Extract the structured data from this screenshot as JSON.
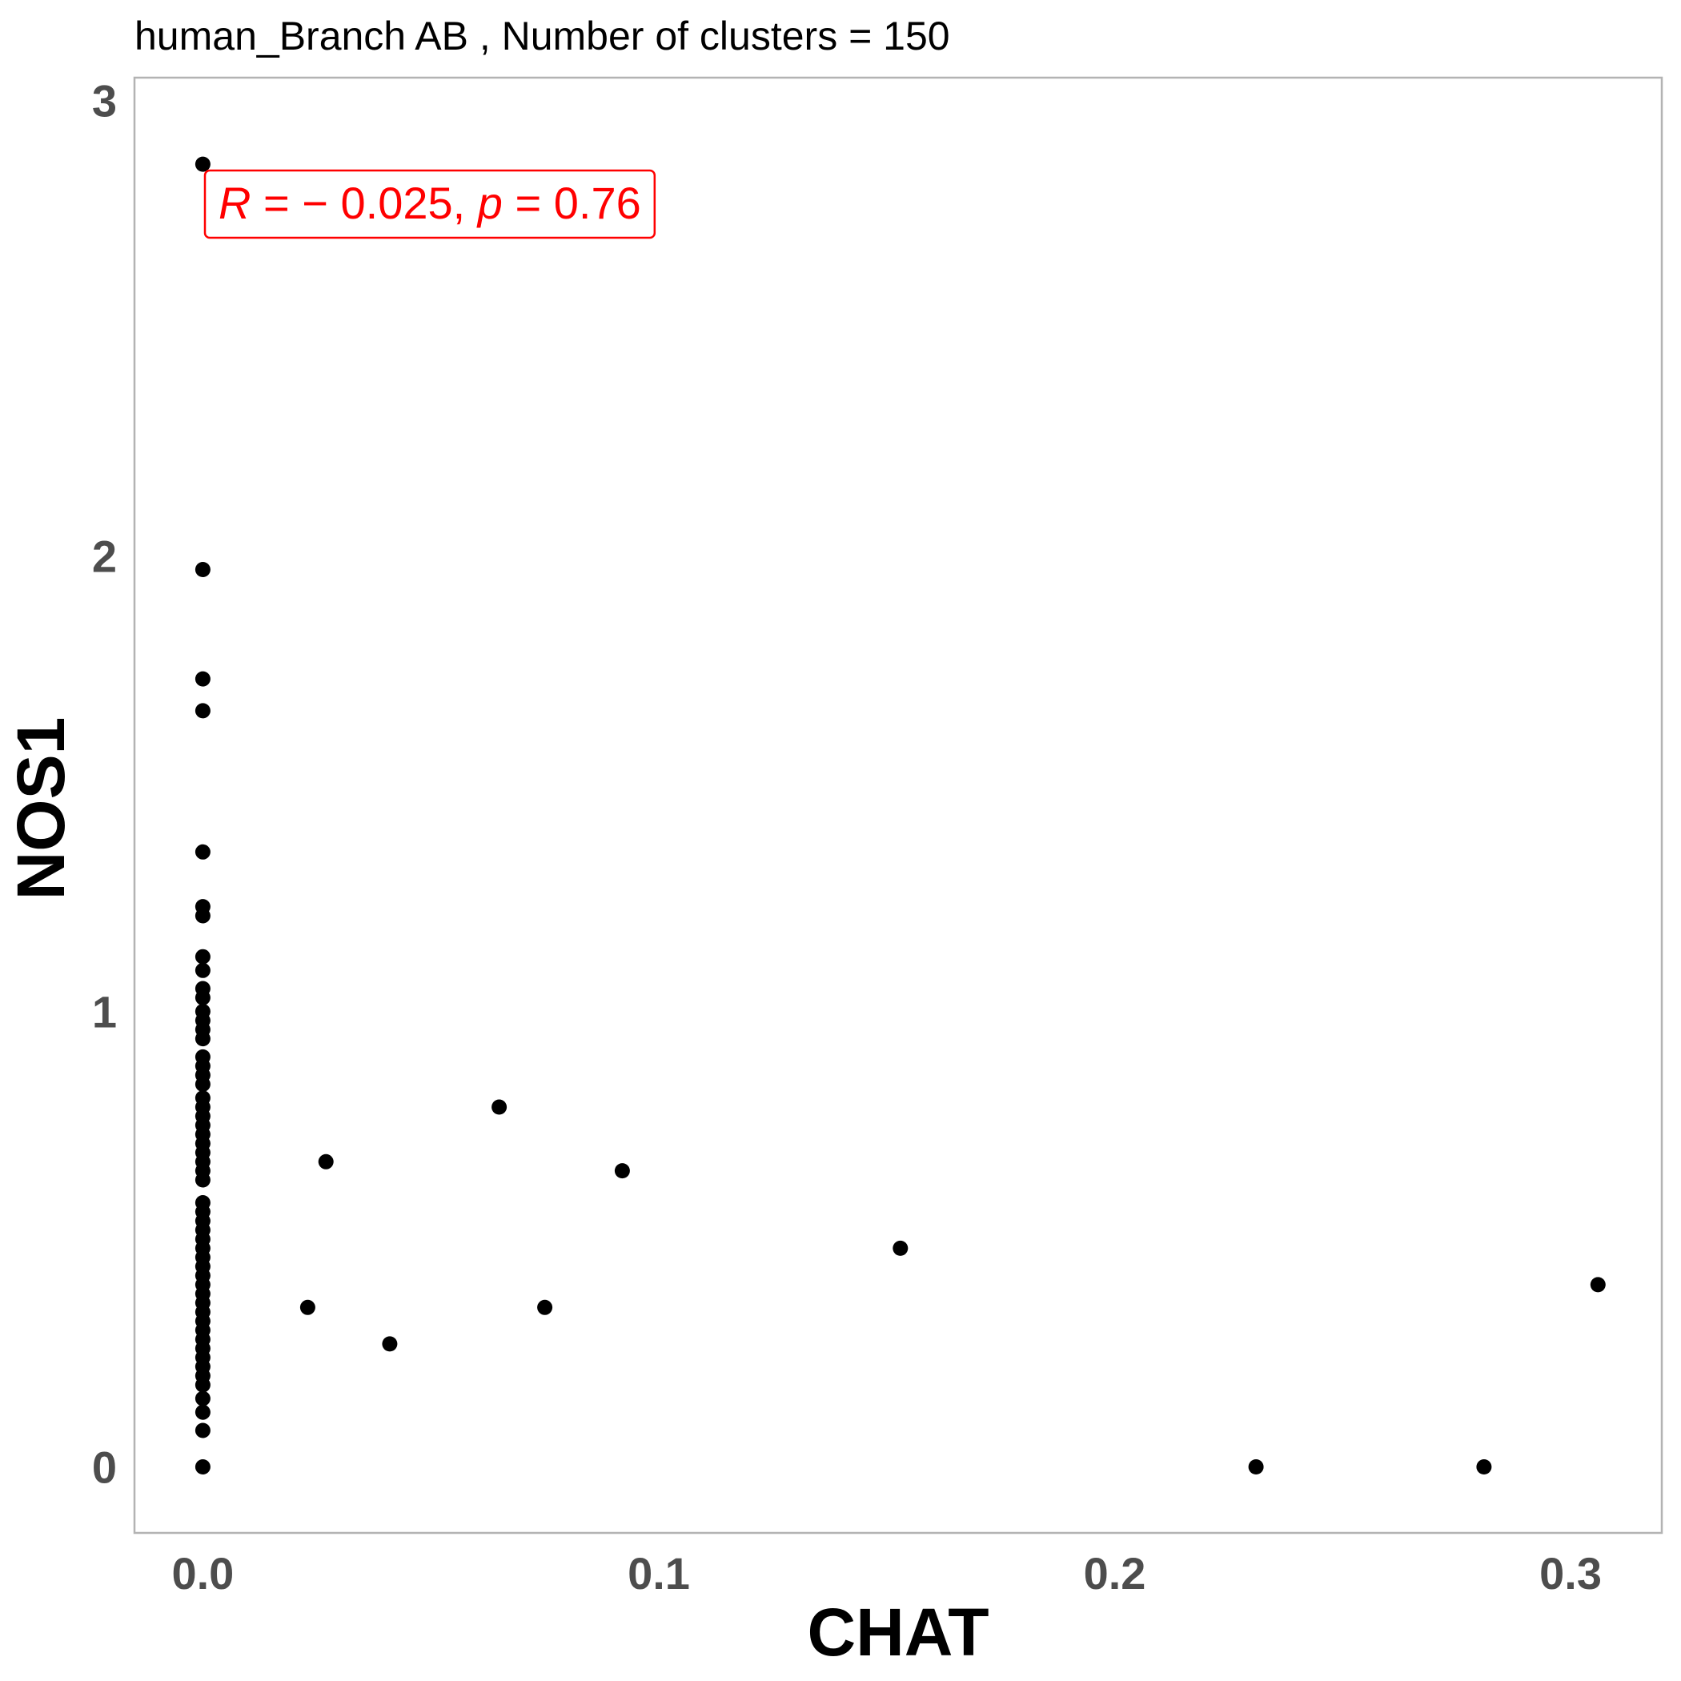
{
  "chart_data": {
    "type": "scatter",
    "title": "human_Branch AB , Number of clusters =  150",
    "xlabel": "CHAT",
    "ylabel": "NOS1",
    "xlim": [
      -0.015,
      0.32
    ],
    "ylim": [
      -0.145,
      3.05
    ],
    "x_ticks": [
      0.0,
      0.1,
      0.2,
      0.3
    ],
    "x_tick_labels": [
      "0.0",
      "0.1",
      "0.2",
      "0.3"
    ],
    "y_ticks": [
      0,
      1,
      2,
      3
    ],
    "y_tick_labels": [
      "0",
      "1",
      "2",
      "3"
    ],
    "grid": false,
    "annotation": {
      "text_r": "R",
      "text_mid": " = − 0.025, ",
      "text_p": "p",
      "text_end": " = 0.76",
      "color": "#ff0000"
    },
    "point_color": "#000000",
    "points": [
      [
        0.0,
        2.86
      ],
      [
        0.0,
        1.97
      ],
      [
        0.0,
        1.73
      ],
      [
        0.0,
        1.66
      ],
      [
        0.0,
        1.35
      ],
      [
        0.0,
        1.23
      ],
      [
        0.0,
        1.21
      ],
      [
        0.0,
        1.12
      ],
      [
        0.0,
        1.09
      ],
      [
        0.0,
        1.05
      ],
      [
        0.0,
        1.03
      ],
      [
        0.0,
        1.0
      ],
      [
        0.0,
        0.98
      ],
      [
        0.0,
        0.96
      ],
      [
        0.0,
        0.94
      ],
      [
        0.0,
        0.9
      ],
      [
        0.0,
        0.88
      ],
      [
        0.0,
        0.86
      ],
      [
        0.0,
        0.84
      ],
      [
        0.0,
        0.81
      ],
      [
        0.0,
        0.79
      ],
      [
        0.0,
        0.77
      ],
      [
        0.0,
        0.75
      ],
      [
        0.0,
        0.73
      ],
      [
        0.0,
        0.71
      ],
      [
        0.0,
        0.69
      ],
      [
        0.0,
        0.67
      ],
      [
        0.0,
        0.65
      ],
      [
        0.0,
        0.63
      ],
      [
        0.0,
        0.58
      ],
      [
        0.0,
        0.56
      ],
      [
        0.0,
        0.54
      ],
      [
        0.0,
        0.52
      ],
      [
        0.0,
        0.5
      ],
      [
        0.0,
        0.48
      ],
      [
        0.0,
        0.46
      ],
      [
        0.0,
        0.44
      ],
      [
        0.0,
        0.42
      ],
      [
        0.0,
        0.4
      ],
      [
        0.0,
        0.38
      ],
      [
        0.0,
        0.36
      ],
      [
        0.0,
        0.34
      ],
      [
        0.0,
        0.32
      ],
      [
        0.0,
        0.3
      ],
      [
        0.0,
        0.28
      ],
      [
        0.0,
        0.26
      ],
      [
        0.0,
        0.24
      ],
      [
        0.0,
        0.22
      ],
      [
        0.0,
        0.2
      ],
      [
        0.0,
        0.18
      ],
      [
        0.0,
        0.15
      ],
      [
        0.0,
        0.12
      ],
      [
        0.0,
        0.08
      ],
      [
        0.0,
        0.0
      ],
      [
        0.023,
        0.35
      ],
      [
        0.027,
        0.67
      ],
      [
        0.041,
        0.27
      ],
      [
        0.065,
        0.79
      ],
      [
        0.075,
        0.35
      ],
      [
        0.092,
        0.65
      ],
      [
        0.153,
        0.48
      ],
      [
        0.231,
        0.0
      ],
      [
        0.281,
        0.0
      ],
      [
        0.306,
        0.4
      ]
    ]
  }
}
